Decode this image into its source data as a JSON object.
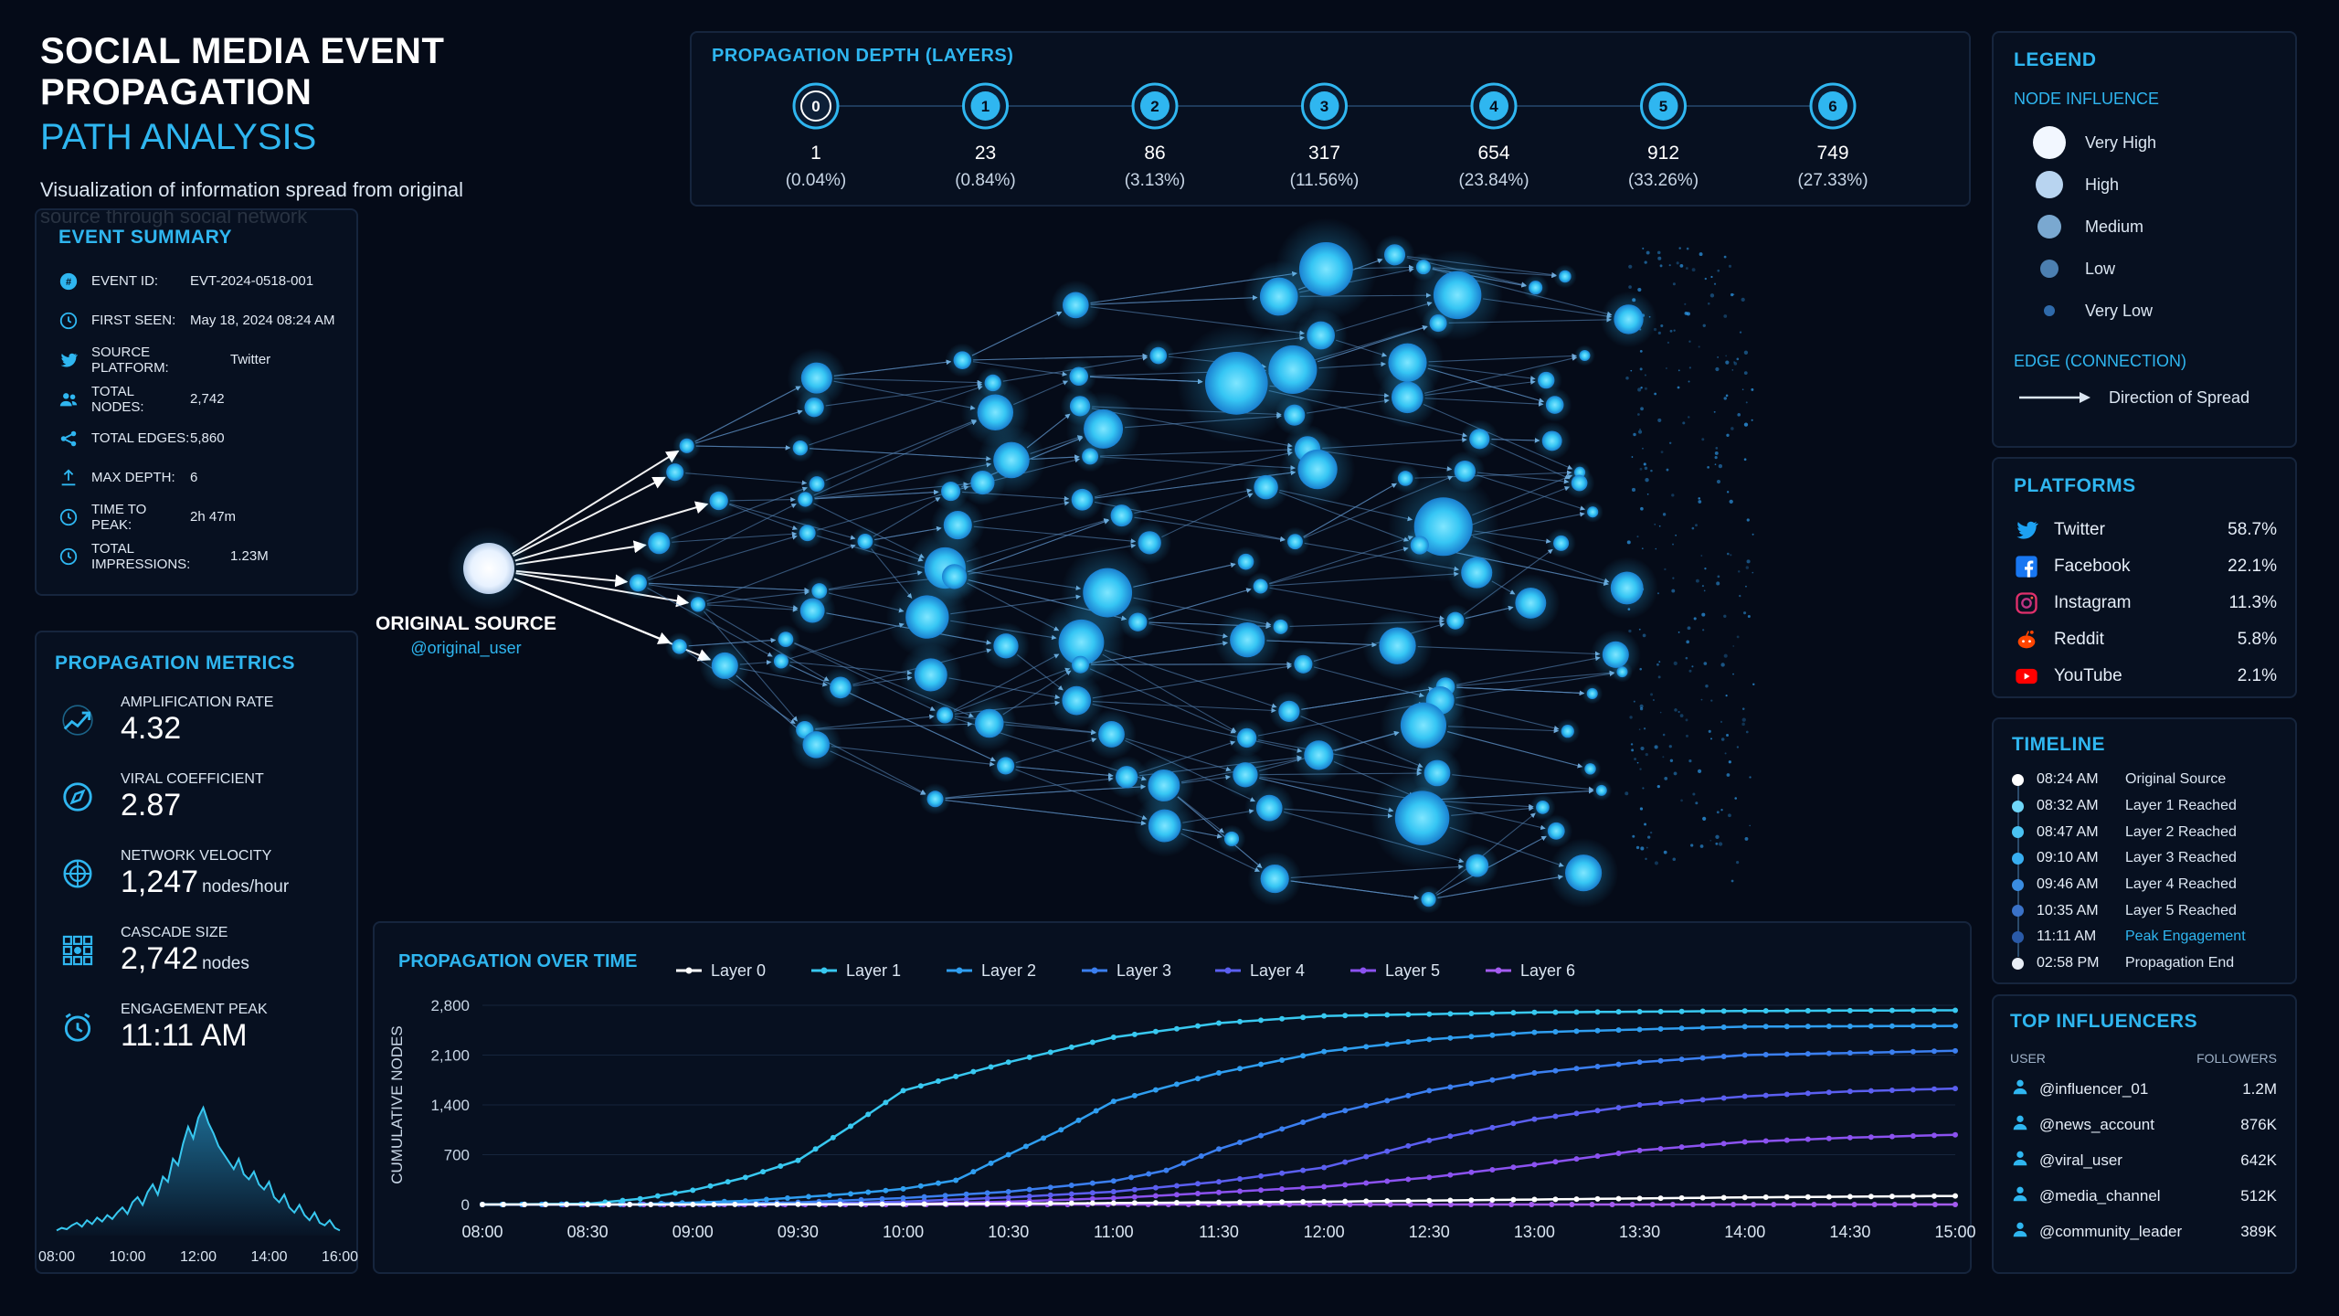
{
  "header": {
    "title_line1": "SOCIAL MEDIA EVENT PROPAGATION",
    "title_line2": "PATH ANALYSIS",
    "subtitle": "Visualization of information spread from original source through social network"
  },
  "event_summary": {
    "title": "EVENT SUMMARY",
    "rows": [
      {
        "icon": "event-id-icon",
        "label": "EVENT ID:",
        "value": "EVT-2024-0518-001"
      },
      {
        "icon": "clock-icon",
        "label": "FIRST SEEN:",
        "value": "May 18, 2024 08:24 AM"
      },
      {
        "icon": "twitter-icon",
        "label": "SOURCE PLATFORM:",
        "value": "Twitter"
      },
      {
        "icon": "users-icon",
        "label": "TOTAL NODES:",
        "value": "2,742"
      },
      {
        "icon": "share-icon",
        "label": "TOTAL EDGES:",
        "value": "5,860"
      },
      {
        "icon": "depth-icon",
        "label": "MAX DEPTH:",
        "value": "6"
      },
      {
        "icon": "timer-icon",
        "label": "TIME TO PEAK:",
        "value": "2h 47m"
      },
      {
        "icon": "impressions-icon",
        "label": "TOTAL IMPRESSIONS:",
        "value": "1.23M"
      }
    ]
  },
  "propagation_metrics": {
    "title": "PROPAGATION METRICS",
    "items": [
      {
        "icon": "amplification-icon",
        "label": "AMPLIFICATION RATE",
        "value": "4.32",
        "unit": ""
      },
      {
        "icon": "compass-icon",
        "label": "VIRAL COEFFICIENT",
        "value": "2.87",
        "unit": ""
      },
      {
        "icon": "radar-icon",
        "label": "NETWORK VELOCITY",
        "value": "1,247",
        "unit": "nodes/hour"
      },
      {
        "icon": "cascade-icon",
        "label": "CASCADE SIZE",
        "value": "2,742",
        "unit": "nodes"
      },
      {
        "icon": "alarm-icon",
        "label": "ENGAGEMENT PEAK",
        "value": "11:11 AM",
        "unit": ""
      }
    ],
    "sparkline": {
      "x_ticks": [
        "08:00",
        "10:00",
        "12:00",
        "14:00",
        "16:00"
      ],
      "values": [
        4,
        6,
        5,
        8,
        10,
        7,
        12,
        9,
        14,
        11,
        16,
        13,
        18,
        22,
        17,
        26,
        30,
        24,
        34,
        40,
        32,
        46,
        42,
        60,
        55,
        72,
        85,
        76,
        92,
        100,
        88,
        80,
        70,
        64,
        58,
        52,
        60,
        48,
        44,
        50,
        40,
        36,
        42,
        30,
        26,
        32,
        22,
        18,
        24,
        16,
        12,
        18,
        10,
        8,
        12,
        6,
        4
      ]
    }
  },
  "depth": {
    "title": "PROPAGATION DEPTH (LAYERS)",
    "layers": [
      {
        "layer": "0",
        "count": "1",
        "pct": "(0.04%)"
      },
      {
        "layer": "1",
        "count": "23",
        "pct": "(0.84%)"
      },
      {
        "layer": "2",
        "count": "86",
        "pct": "(3.13%)"
      },
      {
        "layer": "3",
        "count": "317",
        "pct": "(11.56%)"
      },
      {
        "layer": "4",
        "count": "654",
        "pct": "(23.84%)"
      },
      {
        "layer": "5",
        "count": "912",
        "pct": "(33.26%)"
      },
      {
        "layer": "6",
        "count": "749",
        "pct": "(27.33%)"
      }
    ]
  },
  "network": {
    "source_label": "ORIGINAL SOURCE",
    "source_user": "@original_user"
  },
  "legend": {
    "title": "LEGEND",
    "node_influence_title": "NODE INFLUENCE",
    "influence": [
      "Very High",
      "High",
      "Medium",
      "Low",
      "Very Low"
    ],
    "edge_title": "EDGE (CONNECTION)",
    "edge_label": "Direction of Spread"
  },
  "platforms": {
    "title": "PLATFORMS",
    "items": [
      {
        "icon": "twitter-icon",
        "name": "Twitter",
        "pct": "58.7%",
        "color": "#1da1f2"
      },
      {
        "icon": "facebook-icon",
        "name": "Facebook",
        "pct": "22.1%",
        "color": "#1877f2"
      },
      {
        "icon": "instagram-icon",
        "name": "Instagram",
        "pct": "11.3%",
        "color": "#c13584"
      },
      {
        "icon": "reddit-icon",
        "name": "Reddit",
        "pct": "5.8%",
        "color": "#ff4500"
      },
      {
        "icon": "youtube-icon",
        "name": "YouTube",
        "pct": "2.1%",
        "color": "#ff0000"
      }
    ]
  },
  "timeline": {
    "title": "TIMELINE",
    "events": [
      {
        "time": "08:24 AM",
        "event": "Original Source",
        "highlight": false
      },
      {
        "time": "08:32 AM",
        "event": "Layer 1 Reached",
        "highlight": false
      },
      {
        "time": "08:47 AM",
        "event": "Layer 2 Reached",
        "highlight": false
      },
      {
        "time": "09:10 AM",
        "event": "Layer 3 Reached",
        "highlight": false
      },
      {
        "time": "09:46 AM",
        "event": "Layer 4 Reached",
        "highlight": false
      },
      {
        "time": "10:35 AM",
        "event": "Layer 5 Reached",
        "highlight": false
      },
      {
        "time": "11:11 AM",
        "event": "Peak Engagement",
        "highlight": true
      },
      {
        "time": "02:58 PM",
        "event": "Propagation End",
        "highlight": false
      }
    ]
  },
  "influencers": {
    "title": "TOP INFLUENCERS",
    "col_user": "USER",
    "col_followers": "FOLLOWERS",
    "items": [
      {
        "user": "@influencer_01",
        "followers": "1.2M"
      },
      {
        "user": "@news_account",
        "followers": "876K"
      },
      {
        "user": "@viral_user",
        "followers": "642K"
      },
      {
        "user": "@media_channel",
        "followers": "512K"
      },
      {
        "user": "@community_leader",
        "followers": "389K"
      }
    ]
  },
  "chart_data": {
    "type": "line",
    "title": "PROPAGATION OVER TIME",
    "xlabel": "",
    "ylabel": "CUMULATIVE NODES",
    "x_ticks": [
      "08:00",
      "08:30",
      "09:00",
      "09:30",
      "10:00",
      "10:30",
      "11:00",
      "11:30",
      "12:00",
      "12:30",
      "13:00",
      "13:30",
      "14:00",
      "14:30",
      "15:00"
    ],
    "y_ticks": [
      0,
      700,
      1400,
      2100,
      2800
    ],
    "ylim": [
      0,
      2800
    ],
    "xlim": [
      "08:00",
      "15:00"
    ],
    "legend_position": "top",
    "series": [
      {
        "name": "Layer 0",
        "color": "#ffffff",
        "points": [
          [
            "08:00",
            0
          ],
          [
            "09:00",
            0
          ],
          [
            "10:00",
            5
          ],
          [
            "11:00",
            20
          ],
          [
            "12:00",
            40
          ],
          [
            "13:00",
            70
          ],
          [
            "14:00",
            100
          ],
          [
            "15:00",
            120
          ]
        ]
      },
      {
        "name": "Layer 1",
        "color": "#38c8f0",
        "points": [
          [
            "08:00",
            0
          ],
          [
            "08:30",
            10
          ],
          [
            "08:45",
            80
          ],
          [
            "09:00",
            200
          ],
          [
            "09:15",
            380
          ],
          [
            "09:30",
            620
          ],
          [
            "09:45",
            1100
          ],
          [
            "10:00",
            1600
          ],
          [
            "10:15",
            1800
          ],
          [
            "10:30",
            2000
          ],
          [
            "11:00",
            2350
          ],
          [
            "11:30",
            2550
          ],
          [
            "12:00",
            2650
          ],
          [
            "13:00",
            2700
          ],
          [
            "14:00",
            2720
          ],
          [
            "15:00",
            2730
          ]
        ]
      },
      {
        "name": "Layer 2",
        "color": "#2f9ef0",
        "points": [
          [
            "08:00",
            0
          ],
          [
            "08:45",
            5
          ],
          [
            "09:15",
            50
          ],
          [
            "09:45",
            150
          ],
          [
            "10:00",
            220
          ],
          [
            "10:15",
            340
          ],
          [
            "10:30",
            700
          ],
          [
            "10:45",
            1050
          ],
          [
            "11:00",
            1450
          ],
          [
            "11:30",
            1850
          ],
          [
            "12:00",
            2150
          ],
          [
            "12:30",
            2320
          ],
          [
            "13:00",
            2420
          ],
          [
            "14:00",
            2500
          ],
          [
            "15:00",
            2510
          ]
        ]
      },
      {
        "name": "Layer 3",
        "color": "#3b7ff0",
        "points": [
          [
            "08:00",
            0
          ],
          [
            "09:00",
            5
          ],
          [
            "09:30",
            30
          ],
          [
            "10:00",
            90
          ],
          [
            "10:30",
            180
          ],
          [
            "11:00",
            330
          ],
          [
            "11:15",
            480
          ],
          [
            "11:30",
            780
          ],
          [
            "12:00",
            1250
          ],
          [
            "12:30",
            1600
          ],
          [
            "13:00",
            1850
          ],
          [
            "13:30",
            2000
          ],
          [
            "14:00",
            2100
          ],
          [
            "15:00",
            2160
          ]
        ]
      },
      {
        "name": "Layer 4",
        "color": "#5b5ff0",
        "points": [
          [
            "08:00",
            0
          ],
          [
            "09:30",
            5
          ],
          [
            "10:00",
            40
          ],
          [
            "10:30",
            100
          ],
          [
            "11:00",
            180
          ],
          [
            "11:30",
            320
          ],
          [
            "12:00",
            520
          ],
          [
            "12:30",
            900
          ],
          [
            "13:00",
            1200
          ],
          [
            "13:30",
            1400
          ],
          [
            "14:00",
            1520
          ],
          [
            "14:30",
            1590
          ],
          [
            "15:00",
            1630
          ]
        ]
      },
      {
        "name": "Layer 5",
        "color": "#8b52f0",
        "points": [
          [
            "08:00",
            0
          ],
          [
            "10:00",
            10
          ],
          [
            "10:30",
            40
          ],
          [
            "11:00",
            90
          ],
          [
            "11:30",
            170
          ],
          [
            "12:00",
            250
          ],
          [
            "12:30",
            380
          ],
          [
            "13:00",
            560
          ],
          [
            "13:30",
            760
          ],
          [
            "14:00",
            880
          ],
          [
            "14:30",
            940
          ],
          [
            "15:00",
            980
          ]
        ]
      },
      {
        "name": "Layer 6",
        "color": "#a45cf0",
        "points": [
          [
            "08:00",
            0
          ],
          [
            "15:00",
            0
          ]
        ]
      }
    ]
  }
}
